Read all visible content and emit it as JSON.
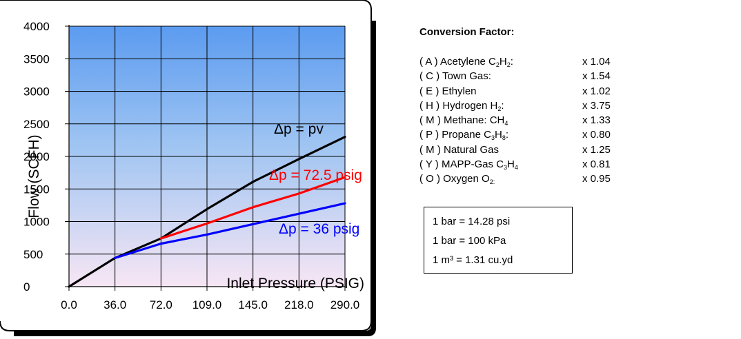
{
  "chart_data": {
    "type": "line",
    "title": "",
    "xlabel": "Inlet Pressure (PSIG)",
    "ylabel": "Flow (SCFH)",
    "x_categories": [
      "0.0",
      "36.0",
      "72.0",
      "109.0",
      "145.0",
      "218.0",
      "290.0"
    ],
    "y_ticks": [
      0,
      500,
      1000,
      1500,
      2000,
      2500,
      3000,
      3500,
      4000
    ],
    "ylim": [
      0,
      4000
    ],
    "grid": true,
    "colors": {
      "background_top": "#5b9bf0",
      "background_bottom": "#f7e6f4",
      "grid": "#000000"
    },
    "series": [
      {
        "name": "Δp = pv",
        "color": "#000000",
        "label_color": "#000000",
        "x": [
          0,
          1,
          2,
          3,
          4,
          5,
          6
        ],
        "values": [
          0,
          440,
          740,
          1190,
          1610,
          1960,
          2300
        ]
      },
      {
        "name": "Δp = 72.5 psig",
        "color": "#ff0000",
        "label_color": "#ff0000",
        "x": [
          2,
          3,
          4,
          5,
          6
        ],
        "values": [
          740,
          970,
          1220,
          1430,
          1680
        ]
      },
      {
        "name": "Δp = 36 psig",
        "color": "#0000ff",
        "label_color": "#0000ff",
        "x": [
          1,
          2,
          3,
          4,
          5,
          6
        ],
        "values": [
          440,
          660,
          800,
          960,
          1120,
          1280
        ]
      }
    ]
  },
  "factors": {
    "title": "Conversion Factor:",
    "rows": [
      {
        "gas": "( A ) Acetylene C<sub>2</sub>H<sub>2</sub>:",
        "value": "x 1.04"
      },
      {
        "gas": "( C ) Town Gas:",
        "value": "x 1.54"
      },
      {
        "gas": "( E ) Ethylen",
        "value": "x 1.02"
      },
      {
        "gas": "( H ) Hydrogen H<sub>2</sub>:",
        "value": "x 3.75"
      },
      {
        "gas": "( M ) Methane: CH<sub>4</sub>",
        "value": "x 1.33"
      },
      {
        "gas": "( P ) Propane C<sub>3</sub>H<sub>8</sub>:",
        "value": "x 0.80"
      },
      {
        "gas": "( M ) Natural Gas",
        "value": "x 1.25"
      },
      {
        "gas": "( Y ) MAPP-Gas C<sub>3</sub>H<sub>4</sub>",
        "value": "x 0.81"
      },
      {
        "gas": "( O ) Oxygen O<sub>2:</sub>",
        "value": "x 0.95"
      }
    ]
  },
  "units": [
    "1 bar = 14.28 psi",
    "1 bar = 100 kPa",
    "1 m³ =  1.31 cu.yd"
  ]
}
